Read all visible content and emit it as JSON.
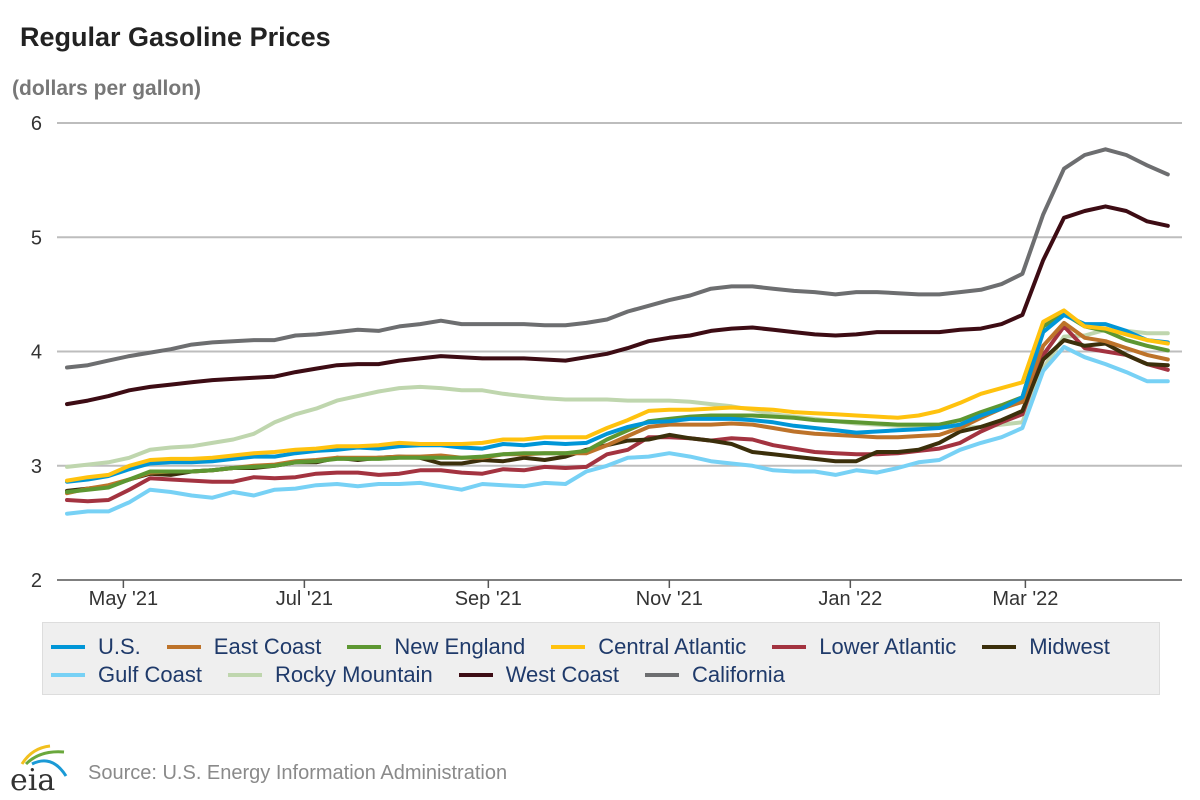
{
  "chart_data": {
    "type": "line",
    "title": "Regular Gasoline Prices",
    "subtitle": "(dollars per gallon)",
    "ylim": [
      2,
      6
    ],
    "yticks": [
      "2",
      "3",
      "4",
      "5",
      "6"
    ],
    "xticks": [
      {
        "date": "2021-05-01",
        "label": "May '21"
      },
      {
        "date": "2021-07-01",
        "label": "Jul '21"
      },
      {
        "date": "2021-09-01",
        "label": "Sep '21"
      },
      {
        "date": "2021-11-01",
        "label": "Nov '21"
      },
      {
        "date": "2022-01-01",
        "label": "Jan '22"
      },
      {
        "date": "2022-03-01",
        "label": "Mar '22"
      }
    ],
    "grid": true,
    "legend_placement": "bottom",
    "dates": [
      "2021-04-12",
      "2021-04-19",
      "2021-04-26",
      "2021-05-03",
      "2021-05-10",
      "2021-05-17",
      "2021-05-24",
      "2021-05-31",
      "2021-06-07",
      "2021-06-14",
      "2021-06-21",
      "2021-06-28",
      "2021-07-05",
      "2021-07-12",
      "2021-07-19",
      "2021-07-26",
      "2021-08-02",
      "2021-08-09",
      "2021-08-16",
      "2021-08-23",
      "2021-08-30",
      "2021-09-06",
      "2021-09-13",
      "2021-09-20",
      "2021-09-27",
      "2021-10-04",
      "2021-10-11",
      "2021-10-18",
      "2021-10-25",
      "2021-11-01",
      "2021-11-08",
      "2021-11-15",
      "2021-11-22",
      "2021-11-29",
      "2021-12-06",
      "2021-12-13",
      "2021-12-20",
      "2021-12-27",
      "2022-01-03",
      "2022-01-10",
      "2022-01-17",
      "2022-01-24",
      "2022-01-31",
      "2022-02-07",
      "2022-02-14",
      "2022-02-21",
      "2022-02-28",
      "2022-03-07",
      "2022-03-14",
      "2022-03-21",
      "2022-03-28",
      "2022-04-04",
      "2022-04-11",
      "2022-04-18"
    ],
    "series": [
      {
        "name": "California",
        "color": "#6d6e70",
        "values": [
          3.86,
          3.88,
          3.92,
          3.96,
          3.99,
          4.02,
          4.06,
          4.08,
          4.09,
          4.1,
          4.1,
          4.14,
          4.15,
          4.17,
          4.19,
          4.18,
          4.22,
          4.24,
          4.27,
          4.24,
          4.24,
          4.24,
          4.24,
          4.23,
          4.23,
          4.25,
          4.28,
          4.35,
          4.4,
          4.45,
          4.49,
          4.55,
          4.57,
          4.57,
          4.55,
          4.53,
          4.52,
          4.5,
          4.52,
          4.52,
          4.51,
          4.5,
          4.5,
          4.52,
          4.54,
          4.59,
          4.68,
          5.2,
          5.6,
          5.72,
          5.77,
          5.72,
          5.63,
          5.55
        ]
      },
      {
        "name": "West Coast",
        "color": "#3d0c14",
        "values": [
          3.54,
          3.57,
          3.61,
          3.66,
          3.69,
          3.71,
          3.73,
          3.75,
          3.76,
          3.77,
          3.78,
          3.82,
          3.85,
          3.88,
          3.89,
          3.89,
          3.92,
          3.94,
          3.96,
          3.95,
          3.94,
          3.94,
          3.94,
          3.93,
          3.92,
          3.95,
          3.98,
          4.03,
          4.09,
          4.12,
          4.14,
          4.18,
          4.2,
          4.21,
          4.19,
          4.17,
          4.15,
          4.14,
          4.15,
          4.17,
          4.17,
          4.17,
          4.17,
          4.19,
          4.2,
          4.24,
          4.32,
          4.8,
          5.17,
          5.23,
          5.27,
          5.23,
          5.14,
          5.1
        ]
      },
      {
        "name": "Rocky Mountain",
        "color": "#bfd6ae",
        "values": [
          2.99,
          3.01,
          3.03,
          3.07,
          3.14,
          3.16,
          3.17,
          3.2,
          3.23,
          3.28,
          3.38,
          3.45,
          3.5,
          3.57,
          3.61,
          3.65,
          3.68,
          3.69,
          3.68,
          3.66,
          3.66,
          3.63,
          3.61,
          3.59,
          3.58,
          3.58,
          3.58,
          3.57,
          3.57,
          3.57,
          3.56,
          3.54,
          3.52,
          3.49,
          3.45,
          3.43,
          3.41,
          3.39,
          3.37,
          3.36,
          3.35,
          3.34,
          3.34,
          3.33,
          3.34,
          3.36,
          3.38,
          3.85,
          4.13,
          4.14,
          4.19,
          4.18,
          4.16,
          4.16
        ]
      },
      {
        "name": "Gulf Coast",
        "color": "#77d1f5",
        "values": [
          2.58,
          2.6,
          2.6,
          2.68,
          2.79,
          2.77,
          2.74,
          2.72,
          2.77,
          2.74,
          2.79,
          2.8,
          2.83,
          2.84,
          2.82,
          2.84,
          2.84,
          2.85,
          2.82,
          2.79,
          2.84,
          2.83,
          2.82,
          2.85,
          2.84,
          2.95,
          3.0,
          3.07,
          3.08,
          3.11,
          3.08,
          3.04,
          3.02,
          3.0,
          2.96,
          2.95,
          2.95,
          2.92,
          2.96,
          2.94,
          2.98,
          3.03,
          3.05,
          3.14,
          3.2,
          3.25,
          3.33,
          3.83,
          4.04,
          3.95,
          3.89,
          3.82,
          3.74,
          3.74
        ]
      },
      {
        "name": "Lower Atlantic",
        "color": "#a33340",
        "values": [
          2.7,
          2.69,
          2.7,
          2.79,
          2.89,
          2.88,
          2.87,
          2.86,
          2.86,
          2.9,
          2.89,
          2.9,
          2.93,
          2.94,
          2.94,
          2.92,
          2.93,
          2.96,
          2.96,
          2.94,
          2.93,
          2.97,
          2.96,
          2.99,
          2.98,
          2.99,
          3.1,
          3.14,
          3.25,
          3.25,
          3.24,
          3.22,
          3.24,
          3.23,
          3.18,
          3.15,
          3.12,
          3.11,
          3.1,
          3.1,
          3.11,
          3.13,
          3.15,
          3.2,
          3.3,
          3.38,
          3.45,
          3.97,
          4.22,
          4.03,
          4.0,
          3.97,
          3.89,
          3.84
        ]
      },
      {
        "name": "Midwest",
        "color": "#3b2f0b",
        "values": [
          2.78,
          2.8,
          2.82,
          2.88,
          2.93,
          2.92,
          2.95,
          2.96,
          2.98,
          2.98,
          3.0,
          3.03,
          3.03,
          3.07,
          3.05,
          3.07,
          3.08,
          3.07,
          3.02,
          3.02,
          3.05,
          3.04,
          3.07,
          3.05,
          3.08,
          3.14,
          3.18,
          3.22,
          3.23,
          3.27,
          3.24,
          3.22,
          3.19,
          3.12,
          3.1,
          3.08,
          3.06,
          3.04,
          3.04,
          3.12,
          3.12,
          3.14,
          3.2,
          3.3,
          3.34,
          3.4,
          3.48,
          3.93,
          4.1,
          4.05,
          4.07,
          3.97,
          3.89,
          3.88
        ]
      },
      {
        "name": "East Coast",
        "color": "#bd732a",
        "values": [
          2.76,
          2.8,
          2.83,
          2.88,
          2.94,
          2.95,
          2.95,
          2.96,
          2.98,
          3.0,
          3.01,
          3.04,
          3.05,
          3.07,
          3.07,
          3.07,
          3.08,
          3.08,
          3.09,
          3.07,
          3.07,
          3.1,
          3.1,
          3.11,
          3.11,
          3.11,
          3.18,
          3.26,
          3.34,
          3.36,
          3.36,
          3.36,
          3.37,
          3.36,
          3.33,
          3.3,
          3.28,
          3.27,
          3.26,
          3.25,
          3.25,
          3.26,
          3.27,
          3.33,
          3.42,
          3.5,
          3.56,
          4.05,
          4.25,
          4.12,
          4.09,
          4.03,
          3.97,
          3.93
        ]
      },
      {
        "name": "New England",
        "color": "#5d9732",
        "values": [
          2.77,
          2.79,
          2.81,
          2.88,
          2.95,
          2.95,
          2.95,
          2.96,
          2.98,
          2.99,
          3.0,
          3.03,
          3.04,
          3.06,
          3.06,
          3.06,
          3.07,
          3.07,
          3.07,
          3.07,
          3.08,
          3.1,
          3.11,
          3.11,
          3.11,
          3.13,
          3.23,
          3.31,
          3.39,
          3.41,
          3.43,
          3.44,
          3.44,
          3.44,
          3.43,
          3.42,
          3.4,
          3.39,
          3.38,
          3.37,
          3.36,
          3.36,
          3.36,
          3.4,
          3.47,
          3.53,
          3.6,
          4.22,
          4.33,
          4.22,
          4.18,
          4.1,
          4.05,
          4.01
        ]
      },
      {
        "name": "U.S.",
        "color": "#0096d7",
        "values": [
          2.86,
          2.88,
          2.91,
          2.97,
          3.02,
          3.03,
          3.03,
          3.04,
          3.06,
          3.08,
          3.08,
          3.11,
          3.13,
          3.14,
          3.16,
          3.15,
          3.17,
          3.18,
          3.18,
          3.16,
          3.15,
          3.19,
          3.18,
          3.2,
          3.19,
          3.2,
          3.28,
          3.34,
          3.38,
          3.39,
          3.41,
          3.41,
          3.41,
          3.4,
          3.38,
          3.35,
          3.33,
          3.31,
          3.29,
          3.3,
          3.31,
          3.32,
          3.33,
          3.36,
          3.44,
          3.5,
          3.6,
          4.17,
          4.32,
          4.24,
          4.24,
          4.18,
          4.1,
          4.08
        ]
      },
      {
        "name": "Central Atlantic",
        "color": "#ffc20e",
        "values": [
          2.87,
          2.9,
          2.92,
          3.0,
          3.05,
          3.06,
          3.06,
          3.07,
          3.09,
          3.11,
          3.12,
          3.14,
          3.15,
          3.17,
          3.17,
          3.18,
          3.2,
          3.19,
          3.19,
          3.19,
          3.2,
          3.23,
          3.23,
          3.25,
          3.25,
          3.25,
          3.33,
          3.4,
          3.48,
          3.49,
          3.49,
          3.5,
          3.51,
          3.5,
          3.49,
          3.47,
          3.46,
          3.45,
          3.44,
          3.43,
          3.42,
          3.44,
          3.48,
          3.55,
          3.63,
          3.68,
          3.73,
          4.26,
          4.36,
          4.22,
          4.2,
          4.15,
          4.1,
          4.07
        ]
      }
    ]
  },
  "legend": {
    "rows": [
      [
        {
          "name": "U.S.",
          "color": "#0096d7"
        },
        {
          "name": "East Coast",
          "color": "#bd732a"
        },
        {
          "name": "New England",
          "color": "#5d9732"
        },
        {
          "name": "Central Atlantic",
          "color": "#ffc20e"
        },
        {
          "name": "Lower Atlantic",
          "color": "#a33340"
        },
        {
          "name": "Midwest",
          "color": "#3b2f0b"
        }
      ],
      [
        {
          "name": "Gulf Coast",
          "color": "#77d1f5"
        },
        {
          "name": "Rocky Mountain",
          "color": "#bfd6ae"
        },
        {
          "name": "West Coast",
          "color": "#3d0c14"
        },
        {
          "name": "California",
          "color": "#6d6e70"
        }
      ]
    ]
  },
  "footer": {
    "source": "Source: U.S. Energy Information Administration",
    "logo_text": "eia"
  }
}
